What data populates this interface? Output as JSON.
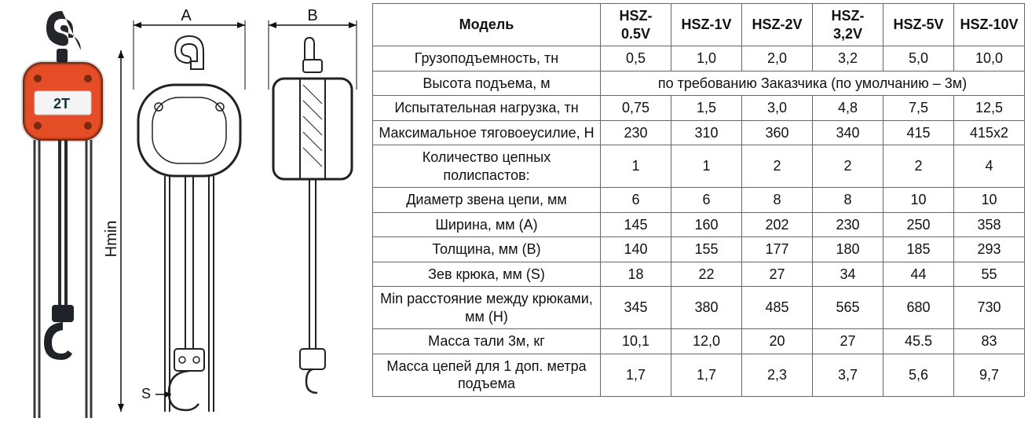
{
  "table": {
    "header_row": [
      "Модель",
      "HSZ-0.5V",
      "HSZ-1V",
      "HSZ-2V",
      "HSZ-3,2V",
      "HSZ-5V",
      "HSZ-10V"
    ],
    "height_row": {
      "label": "Высота подъема, м",
      "span_text": "по требованию Заказчика (по умолчанию – 3м)"
    },
    "rows": [
      {
        "label": "Грузоподъемность, тн",
        "cells": [
          "0,5",
          "1,0",
          "2,0",
          "3,2",
          "5,0",
          "10,0"
        ]
      },
      {
        "label": "Испытательная нагрузка, тн",
        "cells": [
          "0,75",
          "1,5",
          "3,0",
          "4,8",
          "7,5",
          "12,5"
        ]
      },
      {
        "label": "Максимальное тяговоеусилие, Н",
        "cells": [
          "230",
          "310",
          "360",
          "340",
          "415",
          "415x2"
        ]
      },
      {
        "label": "Количество цепных полиспастов:",
        "cells": [
          "1",
          "1",
          "2",
          "2",
          "2",
          "4"
        ]
      },
      {
        "label": "Диаметр звена цепи, мм",
        "cells": [
          "6",
          "6",
          "8",
          "8",
          "10",
          "10"
        ]
      },
      {
        "label": "Ширина, мм (A)",
        "cells": [
          "145",
          "160",
          "202",
          "230",
          "250",
          "358"
        ]
      },
      {
        "label": "Толщина, мм (B)",
        "cells": [
          "140",
          "155",
          "177",
          "180",
          "185",
          "293"
        ]
      },
      {
        "label": "Зев крюка, мм (S)",
        "cells": [
          "18",
          "22",
          "27",
          "34",
          "44",
          "55"
        ]
      },
      {
        "label": "Min расстояние между крюками, мм (H)",
        "cells": [
          "345",
          "380",
          "485",
          "565",
          "680",
          "730"
        ]
      },
      {
        "label": "Масса тали 3м, кг",
        "cells": [
          "10,1",
          "12,0",
          "20",
          "27",
          "45.5",
          "83"
        ]
      },
      {
        "label": "Масса цепей для 1 доп. метра подъема",
        "cells": [
          "1,7",
          "1,7",
          "2,3",
          "3,7",
          "5,6",
          "9,7"
        ]
      }
    ]
  },
  "diagram": {
    "labels": {
      "A": "A",
      "B": "B",
      "Hmin": "Hmin",
      "S": "S",
      "body_text": "2T"
    },
    "colors": {
      "hoist_body": "#e44d26",
      "hoist_accent": "#c23b16",
      "hook_steel": "#2b2b2b",
      "chain": "#3a3a3a",
      "linework": "#222222",
      "dim_line": "#111111",
      "label_plate": "#f4f4f4"
    }
  }
}
